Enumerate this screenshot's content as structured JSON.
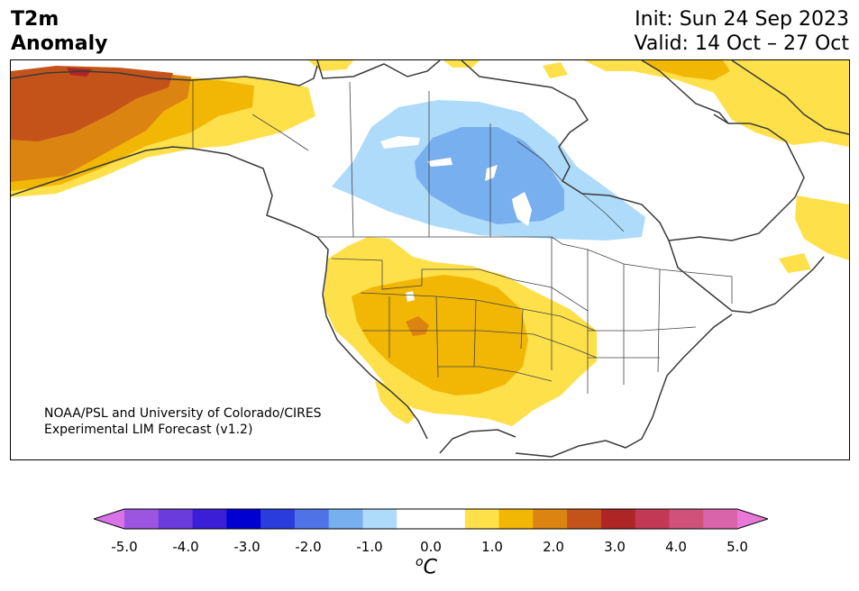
{
  "header": {
    "variable": "T2m",
    "kind": "Anomaly",
    "init": "Init: Sun 24 Sep 2023",
    "valid": "Valid: 14 Oct – 27 Oct"
  },
  "credit": {
    "line1": "NOAA/PSL and University of Colorado/CIRES",
    "line2": "Experimental LIM Forecast (v1.2)"
  },
  "map": {
    "region": "North America",
    "anomaly_areas": [
      {
        "name": "alaska-warm",
        "level": "+1.0 to +3.0 °C"
      },
      {
        "name": "southwest-warm",
        "level": "+0.5 to +2.0 °C"
      },
      {
        "name": "north-plains-cold",
        "level": "-0.5 to -1.5 °C"
      },
      {
        "name": "newfoundland-warm",
        "level": "+0.5 to +1.0 °C"
      }
    ]
  },
  "colorbar": {
    "unit_base": "C",
    "unit_sup": "o",
    "ticks": [
      "-5.0",
      "-4.0",
      "-3.0",
      "-2.0",
      "-1.0",
      "0.0",
      "1.0",
      "2.0",
      "3.0",
      "4.0",
      "5.0"
    ],
    "colors": [
      "#d873e8",
      "#9b55e0",
      "#6a3cdc",
      "#3a1fd6",
      "#0000d0",
      "#2a3ddc",
      "#4f73e6",
      "#78afef",
      "#aedbfa",
      "#ffffff",
      "#ffffff",
      "#fde04a",
      "#f2b705",
      "#dc8412",
      "#c4531a",
      "#ae2525",
      "#c23855",
      "#d0527a",
      "#da64a9",
      "#e879d8"
    ]
  }
}
